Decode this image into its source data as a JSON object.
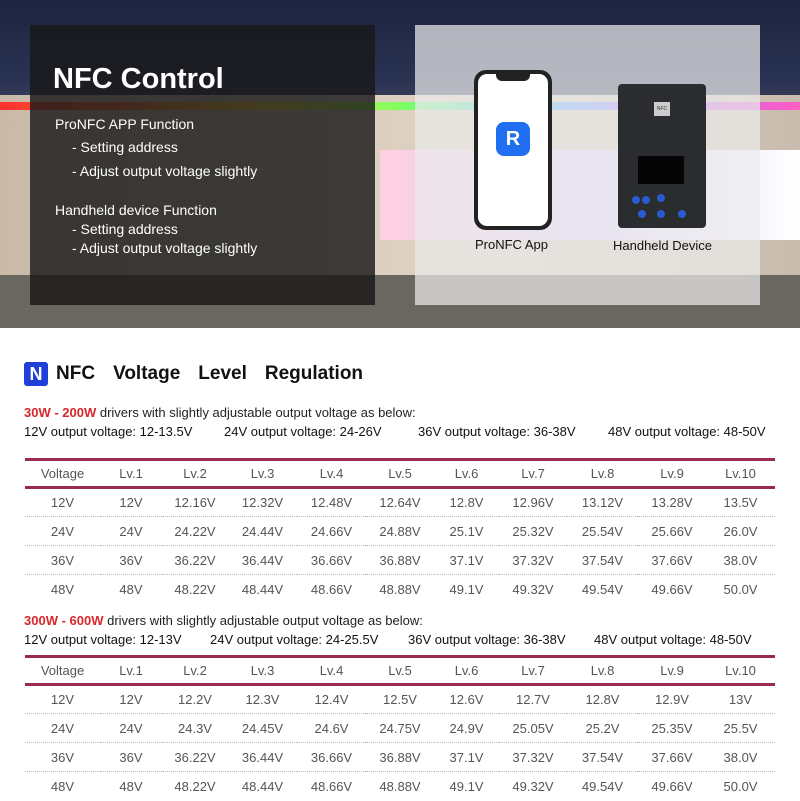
{
  "banner": {
    "title": "NFC Control",
    "app_heading": "ProNFC APP Function",
    "app_items": [
      "- Setting address",
      "- Adjust output voltage slightly"
    ],
    "device_heading": "Handheld device Function",
    "device_items": [
      "- Setting address",
      "- Adjust output voltage slightly"
    ],
    "app_label": "ProNFC App",
    "device_label": "Handheld Device",
    "nfc_badge": "NFC"
  },
  "section": {
    "words": [
      "NFC",
      "Voltage",
      "Level",
      "Regulation"
    ],
    "icon": "nfc-n-logo",
    "accent": "#1f3fd8"
  },
  "colors": {
    "highlight": "#d8262a",
    "table_rule": "#9c2a4c"
  },
  "table1": {
    "range": "30W - 200W",
    "note": " drivers with slightly adjustable output voltage as below:",
    "specs": [
      "12V  output voltage: 12-13.5V",
      "24V  output voltage: 24-26V",
      "36V  output voltage: 36-38V",
      "48V  output voltage: 48-50V"
    ],
    "headers": [
      "Voltage",
      "Lv.1",
      "Lv.2",
      "Lv.3",
      "Lv.4",
      "Lv.5",
      "Lv.6",
      "Lv.7",
      "Lv.8",
      "Lv.9",
      "Lv.10"
    ],
    "rows": [
      [
        "12V",
        "12V",
        "12.16V",
        "12.32V",
        "12.48V",
        "12.64V",
        "12.8V",
        "12.96V",
        "13.12V",
        "13.28V",
        "13.5V"
      ],
      [
        "24V",
        "24V",
        "24.22V",
        "24.44V",
        "24.66V",
        "24.88V",
        "25.1V",
        "25.32V",
        "25.54V",
        "25.66V",
        "26.0V"
      ],
      [
        "36V",
        "36V",
        "36.22V",
        "36.44V",
        "36.66V",
        "36.88V",
        "37.1V",
        "37.32V",
        "37.54V",
        "37.66V",
        "38.0V"
      ],
      [
        "48V",
        "48V",
        "48.22V",
        "48.44V",
        "48.66V",
        "48.88V",
        "49.1V",
        "49.32V",
        "49.54V",
        "49.66V",
        "50.0V"
      ]
    ]
  },
  "table2": {
    "range": "300W - 600W",
    "note": " drivers with slightly adjustable output voltage as below:",
    "specs": [
      "12V  output voltage: 12-13V",
      "24V  output voltage: 24-25.5V",
      "36V  output voltage: 36-38V",
      "48V  output voltage: 48-50V"
    ],
    "headers": [
      "Voltage",
      "Lv.1",
      "Lv.2",
      "Lv.3",
      "Lv.4",
      "Lv.5",
      "Lv.6",
      "Lv.7",
      "Lv.8",
      "Lv.9",
      "Lv.10"
    ],
    "rows": [
      [
        "12V",
        "12V",
        "12.2V",
        "12.3V",
        "12.4V",
        "12.5V",
        "12.6V",
        "12.7V",
        "12.8V",
        "12.9V",
        "13V"
      ],
      [
        "24V",
        "24V",
        "24.3V",
        "24.45V",
        "24.6V",
        "24.75V",
        "24.9V",
        "25.05V",
        "25.2V",
        "25.35V",
        "25.5V"
      ],
      [
        "36V",
        "36V",
        "36.22V",
        "36.44V",
        "36.66V",
        "36.88V",
        "37.1V",
        "37.32V",
        "37.54V",
        "37.66V",
        "38.0V"
      ],
      [
        "48V",
        "48V",
        "48.22V",
        "48.44V",
        "48.66V",
        "48.88V",
        "49.1V",
        "49.32V",
        "49.54V",
        "49.66V",
        "50.0V"
      ]
    ]
  }
}
